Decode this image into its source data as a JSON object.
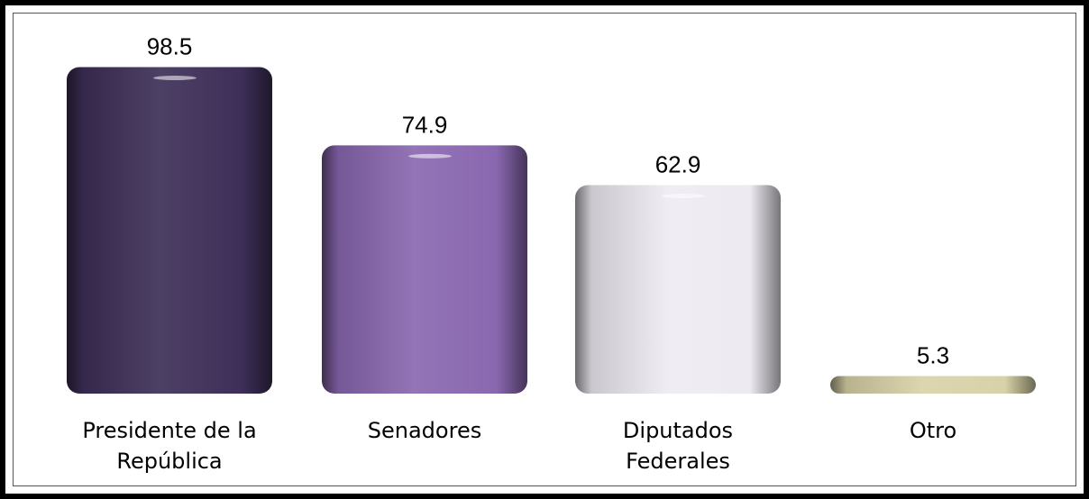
{
  "chart_data": {
    "type": "bar",
    "categories": [
      [
        "Presidente de la",
        "República"
      ],
      [
        "Senadores"
      ],
      [
        "Diputados",
        "Federales"
      ],
      [
        "Otro"
      ]
    ],
    "values": [
      98.5,
      74.9,
      62.9,
      5.3
    ],
    "value_labels": [
      "98.5",
      "74.9",
      "62.9",
      "5.3"
    ],
    "title": "",
    "xlabel": "",
    "ylabel": "",
    "ylim": [
      0,
      100
    ],
    "grid": false,
    "colors": [
      "#3e2f58",
      "#8a68b0",
      "#eeeaf2",
      "#d8d2a8"
    ]
  }
}
